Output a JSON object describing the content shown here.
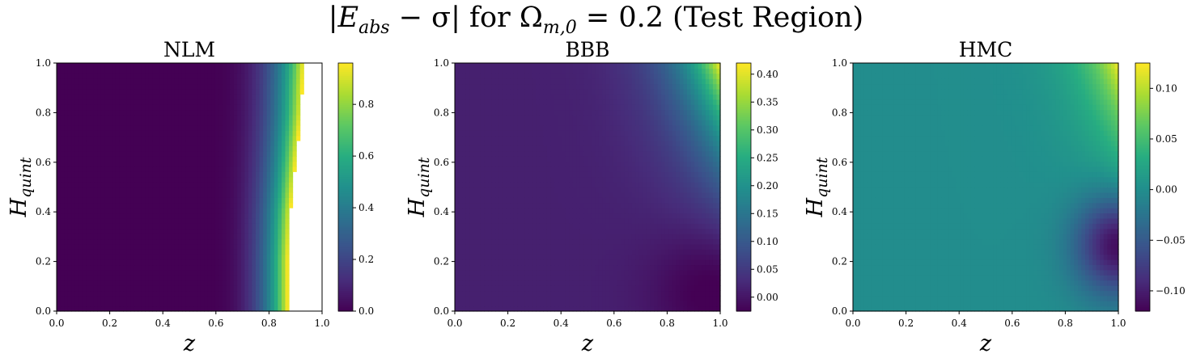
{
  "figure": {
    "suptitle": "|E_abs − σ| for Ω_m,0 = 0.2 (Test Region)",
    "suptitle_parts": {
      "lhs": "|E",
      "lhs_sub": "abs",
      "minus_sigma": " − σ| for Ω",
      "omega_sub": "m,0",
      "rest": " = 0.2 (Test Region)"
    }
  },
  "chart_data": [
    {
      "type": "heatmap",
      "title": "NLM",
      "xlabel": "z",
      "ylabel": "H_quint",
      "ylabel_parts": {
        "main": "H",
        "sub": "quint"
      },
      "xlim": [
        0.0,
        1.0
      ],
      "ylim": [
        0.0,
        1.0
      ],
      "xticks": [
        "0.0",
        "0.2",
        "0.4",
        "0.6",
        "0.8",
        "1.0"
      ],
      "yticks": [
        "0.0",
        "0.2",
        "0.4",
        "0.6",
        "0.8",
        "1.0"
      ],
      "colormap": "viridis",
      "colorbar_range": [
        0.0,
        0.96
      ],
      "colorbar_ticks": [
        "0.0",
        "0.2",
        "0.4",
        "0.6",
        "0.8"
      ],
      "colorbar_tick_values": [
        0.0,
        0.2,
        0.4,
        0.6,
        0.8
      ],
      "grid": false,
      "pattern": "near 0 for z < 0.6, rising steeply to ~0.95 near z≈0.87–0.93; undefined (blank) beyond that edge",
      "nan_edge_z": [
        [
          0.0,
          0.87
        ],
        [
          0.2,
          0.87
        ],
        [
          0.4,
          0.88
        ],
        [
          0.6,
          0.9
        ],
        [
          0.8,
          0.92
        ],
        [
          1.0,
          0.93
        ]
      ]
    },
    {
      "type": "heatmap",
      "title": "BBB",
      "xlabel": "z",
      "ylabel": "H_quint",
      "ylabel_parts": {
        "main": "H",
        "sub": "quint"
      },
      "xlim": [
        0.0,
        1.0
      ],
      "ylim": [
        0.0,
        1.0
      ],
      "xticks": [
        "0.0",
        "0.2",
        "0.4",
        "0.6",
        "0.8",
        "1.0"
      ],
      "yticks": [
        "0.0",
        "0.2",
        "0.4",
        "0.6",
        "0.8",
        "1.0"
      ],
      "colormap": "viridis",
      "colorbar_range": [
        -0.025,
        0.42
      ],
      "colorbar_ticks": [
        "0.00",
        "0.05",
        "0.10",
        "0.15",
        "0.20",
        "0.25",
        "0.30",
        "0.35",
        "0.40"
      ],
      "colorbar_tick_values": [
        0.0,
        0.05,
        0.1,
        0.15,
        0.2,
        0.25,
        0.3,
        0.35,
        0.4
      ],
      "grid": false,
      "pattern": "roughly 0.01–0.02 over most of the domain; rises to ~0.42 at top-right (z=1, H=1); dips to ~-0.025 at bottom-right (z≈0.95, H≈0.1)"
    },
    {
      "type": "heatmap",
      "title": "HMC",
      "xlabel": "z",
      "ylabel": "H_quint",
      "ylabel_parts": {
        "main": "H",
        "sub": "quint"
      },
      "xlim": [
        0.0,
        1.0
      ],
      "ylim": [
        0.0,
        1.0
      ],
      "xticks": [
        "0.0",
        "0.2",
        "0.4",
        "0.6",
        "0.8",
        "1.0"
      ],
      "yticks": [
        "0.0",
        "0.2",
        "0.4",
        "0.6",
        "0.8",
        "1.0"
      ],
      "colormap": "viridis",
      "colorbar_range": [
        -0.12,
        0.125
      ],
      "colorbar_ticks": [
        "−0.10",
        "−0.05",
        "0.00",
        "0.05",
        "0.10"
      ],
      "colorbar_tick_values": [
        -0.1,
        -0.05,
        0.0,
        0.05,
        0.1
      ],
      "grid": false,
      "pattern": "near 0 over most of the domain; rises to ~0.12 at top-right; falls to ~-0.11 at right edge around H≈0.25"
    }
  ]
}
